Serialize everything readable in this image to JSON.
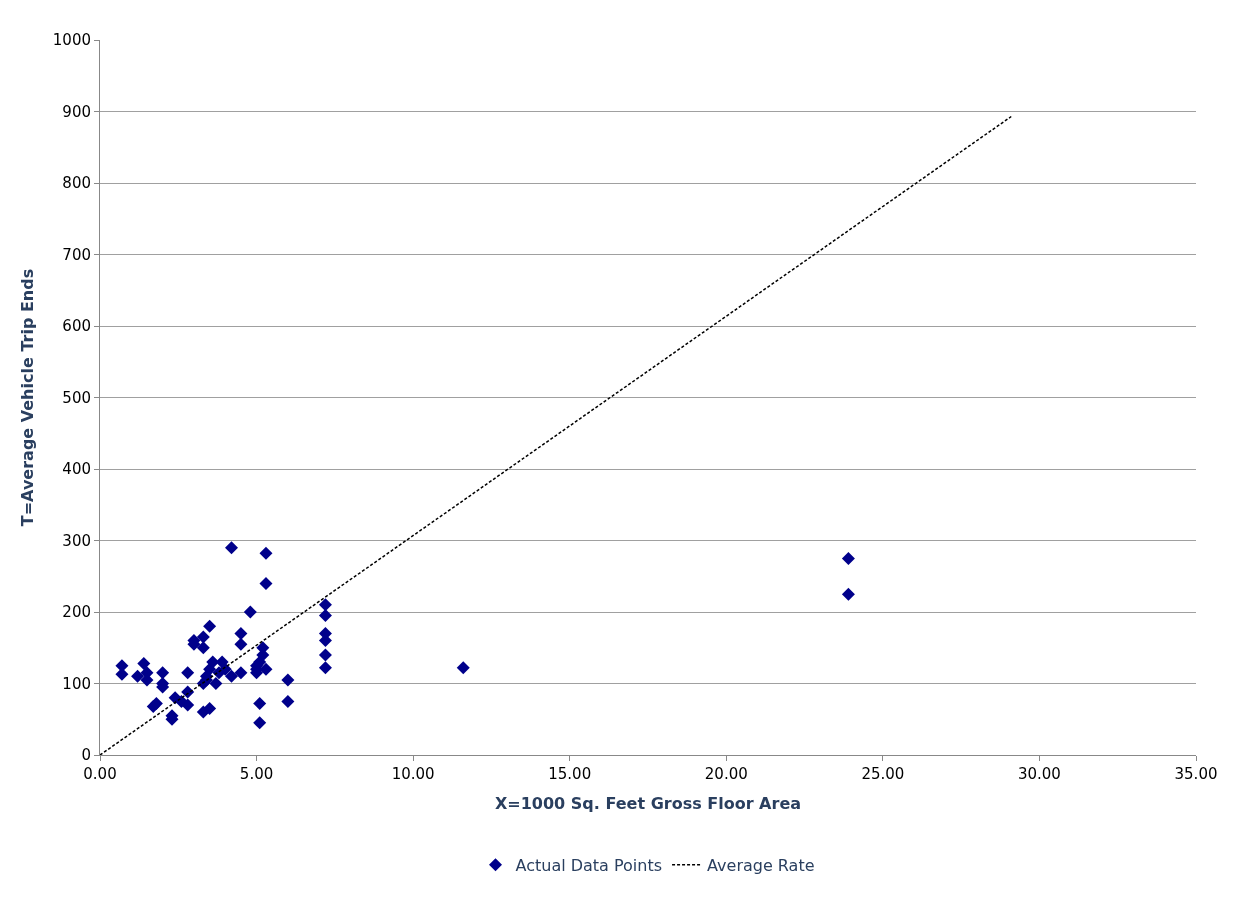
{
  "chart_data": {
    "type": "scatter",
    "xlabel": "X=1000 Sq. Feet Gross Floor Area",
    "ylabel": "T=Average Vehicle Trip Ends",
    "series": [
      {
        "name": "Actual Data Points",
        "color": "#00008b",
        "marker": "diamond",
        "x": [
          0.7,
          0.7,
          1.2,
          1.4,
          1.5,
          1.5,
          1.8,
          1.7,
          2.0,
          2.0,
          2.0,
          2.3,
          2.3,
          2.4,
          2.6,
          2.8,
          2.8,
          2.8,
          3.0,
          3.0,
          3.3,
          3.3,
          3.5,
          3.3,
          3.5,
          3.3,
          3.4,
          3.5,
          3.6,
          3.4,
          3.7,
          3.9,
          4.0,
          4.2,
          3.8,
          4.2,
          4.5,
          4.5,
          4.8,
          4.5,
          5.0,
          5.0,
          5.1,
          5.2,
          5.2,
          5.0,
          5.3,
          5.3,
          5.3,
          5.1,
          5.1,
          6.0,
          6.0,
          7.2,
          7.2,
          7.2,
          7.2,
          7.2,
          7.2,
          11.6,
          23.9,
          23.9
        ],
        "values": [
          125,
          113,
          110,
          128,
          115,
          105,
          72,
          68,
          115,
          100,
          95,
          50,
          55,
          80,
          75,
          115,
          88,
          70,
          155,
          160,
          165,
          150,
          180,
          60,
          65,
          100,
          110,
          120,
          130,
          105,
          100,
          130,
          120,
          110,
          115,
          290,
          155,
          170,
          200,
          115,
          115,
          120,
          130,
          140,
          150,
          125,
          120,
          282,
          240,
          45,
          72,
          105,
          75,
          210,
          195,
          170,
          160,
          140,
          122,
          122,
          275,
          225
        ]
      },
      {
        "name": "Average Rate",
        "type": "line",
        "color": "#000000",
        "line_style": "dashed",
        "marker": "none",
        "x": [
          0,
          29.1
        ],
        "values": [
          0,
          893
        ]
      }
    ],
    "xlim": [
      0,
      35
    ],
    "xticks": [
      {
        "value": 0,
        "label": "0.00"
      },
      {
        "value": 5,
        "label": "5.00"
      },
      {
        "value": 10,
        "label": "10.00"
      },
      {
        "value": 15,
        "label": "15.00"
      },
      {
        "value": 20,
        "label": "20.00"
      },
      {
        "value": 25,
        "label": "25.00"
      },
      {
        "value": 30,
        "label": "30.00"
      },
      {
        "value": 35,
        "label": "35.00"
      }
    ],
    "ylim": [
      0,
      1000
    ],
    "yticks": [
      0,
      100,
      200,
      300,
      400,
      500,
      600,
      700,
      800,
      900,
      1000
    ],
    "grid": "y",
    "legend": "bottom"
  }
}
